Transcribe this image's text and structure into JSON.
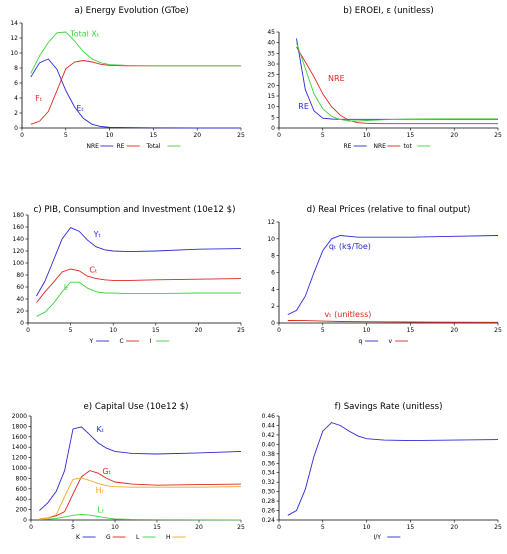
{
  "colors": {
    "blue": "#2b2bd6",
    "red": "#e0261e",
    "green": "#3fd23f",
    "orange": "#f5a623"
  },
  "chart_data": [
    {
      "id": "a",
      "type": "line",
      "title": "a) Energy Evolution (GToe)",
      "xlim": [
        0,
        25
      ],
      "ylim": [
        0,
        14
      ],
      "xticks": [
        0,
        5,
        10,
        15,
        20,
        25
      ],
      "yticks": [
        0,
        2,
        4,
        6,
        8,
        10,
        12,
        14
      ],
      "series": [
        {
          "name": "NRE",
          "color": "#2b2bd6",
          "x": [
            1,
            2,
            3,
            4,
            5,
            6,
            7,
            8,
            9,
            10,
            12,
            15,
            20,
            25
          ],
          "y": [
            6.8,
            8.7,
            9.2,
            7.8,
            5.0,
            2.8,
            1.3,
            0.5,
            0.2,
            0.1,
            0.05,
            0.02,
            0.0,
            0.0
          ]
        },
        {
          "name": "RE",
          "color": "#e0261e",
          "x": [
            1,
            2,
            3,
            4,
            5,
            6,
            7,
            8,
            9,
            10,
            12,
            15,
            20,
            25
          ],
          "y": [
            0.5,
            0.9,
            2.2,
            5.0,
            7.9,
            8.8,
            9.0,
            8.8,
            8.5,
            8.35,
            8.3,
            8.3,
            8.3,
            8.3
          ]
        },
        {
          "name": "Total",
          "color": "#3fd23f",
          "x": [
            1,
            2,
            3,
            4,
            5,
            6,
            7,
            8,
            9,
            10,
            12,
            15,
            20,
            25
          ],
          "y": [
            7.3,
            9.6,
            11.4,
            12.7,
            12.8,
            11.6,
            10.2,
            9.2,
            8.7,
            8.45,
            8.35,
            8.3,
            8.3,
            8.3
          ]
        }
      ],
      "annotations": [
        {
          "text": "Total Xₜ",
          "color": "#3fd23f",
          "x": 5.5,
          "y": 12.2
        },
        {
          "text": "Fₜ",
          "color": "#e0261e",
          "x": 1.5,
          "y": 3.6
        },
        {
          "text": "Eₜ",
          "color": "#2b2bd6",
          "x": 6.2,
          "y": 2.3
        }
      ]
    },
    {
      "id": "b",
      "type": "line",
      "title": "b) EROEI, ε (unitless)",
      "xlim": [
        0,
        25
      ],
      "ylim": [
        0,
        45
      ],
      "xticks": [
        0,
        5,
        10,
        15,
        20,
        25
      ],
      "yticks": [
        0,
        5,
        10,
        15,
        20,
        25,
        30,
        35,
        40,
        45
      ],
      "series": [
        {
          "name": "RE",
          "color": "#2b2bd6",
          "x": [
            2,
            3,
            4,
            5,
            6,
            7,
            8,
            10,
            15,
            20,
            25
          ],
          "y": [
            42,
            18,
            8,
            4.6,
            4.2,
            4.1,
            4.1,
            4.1,
            4.1,
            4.1,
            4.1
          ]
        },
        {
          "name": "NRE",
          "color": "#e0261e",
          "x": [
            2,
            3,
            4,
            5,
            6,
            7,
            8,
            9,
            10,
            12,
            15,
            20,
            25
          ],
          "y": [
            38,
            31,
            24,
            16,
            10,
            6,
            3.5,
            2.5,
            2.2,
            2.0,
            2.0,
            2.0,
            2.0
          ]
        },
        {
          "name": "tot",
          "color": "#3fd23f",
          "x": [
            2,
            3,
            4,
            5,
            6,
            7,
            8,
            9,
            10,
            12,
            15,
            20,
            25
          ],
          "y": [
            40,
            28,
            16,
            9,
            5.5,
            4.0,
            3.3,
            3.3,
            3.5,
            3.9,
            4.2,
            4.3,
            4.3
          ]
        }
      ],
      "annotations": [
        {
          "text": "NRE",
          "color": "#e0261e",
          "x": 5.6,
          "y": 22
        },
        {
          "text": "RE",
          "color": "#2b2bd6",
          "x": 2.2,
          "y": 9
        }
      ]
    },
    {
      "id": "c",
      "type": "line",
      "title": "c) PIB, Consumption and Investment (10e12 $)",
      "xlim": [
        0,
        25
      ],
      "ylim": [
        0,
        180
      ],
      "xticks": [
        0,
        5,
        10,
        15,
        20,
        25
      ],
      "yticks": [
        0,
        20,
        40,
        60,
        80,
        100,
        120,
        140,
        160,
        180
      ],
      "series": [
        {
          "name": "Y",
          "color": "#2b2bd6",
          "x": [
            1,
            2,
            3,
            4,
            5,
            6,
            7,
            8,
            9,
            10,
            12,
            15,
            20,
            25
          ],
          "y": [
            45,
            70,
            105,
            140,
            159,
            153,
            138,
            127,
            122,
            120,
            119,
            120,
            123,
            124
          ]
        },
        {
          "name": "C",
          "color": "#e0261e",
          "x": [
            1,
            2,
            3,
            4,
            5,
            6,
            7,
            8,
            9,
            10,
            12,
            15,
            20,
            25
          ],
          "y": [
            34,
            52,
            68,
            85,
            90,
            87,
            78,
            74,
            72,
            71,
            71,
            72,
            73,
            74
          ]
        },
        {
          "name": "I",
          "color": "#3fd23f",
          "x": [
            1,
            2,
            3,
            4,
            5,
            6,
            7,
            8,
            9,
            10,
            12,
            15,
            20,
            25
          ],
          "y": [
            11,
            18,
            33,
            52,
            68,
            68,
            58,
            52,
            50,
            50,
            49,
            49,
            50,
            50
          ]
        }
      ],
      "annotations": [
        {
          "text": "Yₜ",
          "color": "#2b2bd6",
          "x": 7.7,
          "y": 143
        },
        {
          "text": "Cₜ",
          "color": "#e0261e",
          "x": 7.2,
          "y": 84
        },
        {
          "text": "Iₜ",
          "color": "#3fd23f",
          "x": 4.2,
          "y": 55
        }
      ]
    },
    {
      "id": "d",
      "type": "line",
      "title": "d) Real Prices (relative to final output)",
      "xlim": [
        0,
        25
      ],
      "ylim": [
        0,
        12
      ],
      "xticks": [
        0,
        5,
        10,
        15,
        20,
        25
      ],
      "yticks": [
        0,
        2,
        4,
        6,
        8,
        10,
        12
      ],
      "series": [
        {
          "name": "q",
          "color": "#2b2bd6",
          "x": [
            1,
            2,
            3,
            4,
            5,
            6,
            7,
            8,
            9,
            10,
            12,
            15,
            20,
            25
          ],
          "y": [
            1.0,
            1.5,
            3.2,
            6.0,
            8.6,
            10.0,
            10.4,
            10.3,
            10.2,
            10.2,
            10.2,
            10.2,
            10.3,
            10.4
          ]
        },
        {
          "name": "v",
          "color": "#e0261e",
          "x": [
            1,
            3,
            5,
            7,
            10,
            15,
            20,
            25
          ],
          "y": [
            0.3,
            0.28,
            0.22,
            0.18,
            0.15,
            0.12,
            0.1,
            0.08
          ]
        }
      ],
      "annotations": [
        {
          "text": "qₜ (k$/Toe)",
          "color": "#2b2bd6",
          "x": 5.7,
          "y": 8.8
        },
        {
          "text": "vₜ (unitless)",
          "color": "#e0261e",
          "x": 5.2,
          "y": 0.7
        }
      ]
    },
    {
      "id": "e",
      "type": "line",
      "title": "e) Capital Use (10e12 $)",
      "xlim": [
        0,
        25
      ],
      "ylim": [
        0,
        2000
      ],
      "xticks": [
        0,
        5,
        10,
        15,
        20,
        25
      ],
      "yticks": [
        0,
        200,
        400,
        600,
        800,
        1000,
        1200,
        1400,
        1600,
        1800,
        2000
      ],
      "series": [
        {
          "name": "K",
          "color": "#2b2bd6",
          "x": [
            1,
            2,
            3,
            4,
            5,
            6,
            7,
            8,
            9,
            10,
            12,
            15,
            20,
            25
          ],
          "y": [
            180,
            330,
            550,
            950,
            1750,
            1790,
            1640,
            1480,
            1380,
            1320,
            1280,
            1270,
            1290,
            1320
          ]
        },
        {
          "name": "G",
          "color": "#e0261e",
          "x": [
            1,
            2,
            3,
            4,
            5,
            6,
            7,
            8,
            9,
            10,
            12,
            15,
            20,
            25
          ],
          "y": [
            20,
            40,
            80,
            160,
            500,
            830,
            950,
            900,
            800,
            730,
            690,
            670,
            680,
            690
          ]
        },
        {
          "name": "L",
          "color": "#3fd23f",
          "x": [
            1,
            2,
            3,
            4,
            5,
            6,
            7,
            8,
            9,
            10,
            12,
            15,
            20,
            25
          ],
          "y": [
            5,
            15,
            30,
            60,
            90,
            105,
            95,
            70,
            40,
            20,
            10,
            5,
            3,
            2
          ]
        },
        {
          "name": "H",
          "color": "#f5a623",
          "x": [
            1,
            2,
            3,
            4,
            5,
            6,
            7,
            8,
            9,
            10,
            12,
            15,
            20,
            25
          ],
          "y": [
            20,
            40,
            100,
            450,
            780,
            810,
            760,
            700,
            660,
            640,
            630,
            630,
            630,
            640
          ]
        }
      ],
      "annotations": [
        {
          "text": "Kₜ",
          "color": "#2b2bd6",
          "x": 7.8,
          "y": 1690
        },
        {
          "text": "Gₜ",
          "color": "#e0261e",
          "x": 8.5,
          "y": 880
        },
        {
          "text": "Hₜ",
          "color": "#f5a623",
          "x": 7.7,
          "y": 520
        },
        {
          "text": "Lₜ",
          "color": "#3fd23f",
          "x": 7.9,
          "y": 140
        }
      ]
    },
    {
      "id": "f",
      "type": "line",
      "title": "f) Savings Rate (unitless)",
      "xlim": [
        0,
        25
      ],
      "ylim": [
        0.24,
        0.46
      ],
      "xticks": [
        0,
        5,
        10,
        15,
        20,
        25
      ],
      "yticks": [
        0.24,
        0.26,
        0.28,
        0.3,
        0.32,
        0.34,
        0.36,
        0.38,
        0.4,
        0.42,
        0.44,
        0.46
      ],
      "series": [
        {
          "name": "I/Y",
          "color": "#2b2bd6",
          "x": [
            1,
            2,
            3,
            4,
            5,
            6,
            7,
            8,
            9,
            10,
            12,
            15,
            20,
            25
          ],
          "y": [
            0.25,
            0.26,
            0.305,
            0.375,
            0.428,
            0.446,
            0.44,
            0.428,
            0.418,
            0.412,
            0.409,
            0.408,
            0.409,
            0.41
          ]
        }
      ],
      "annotations": []
    }
  ]
}
